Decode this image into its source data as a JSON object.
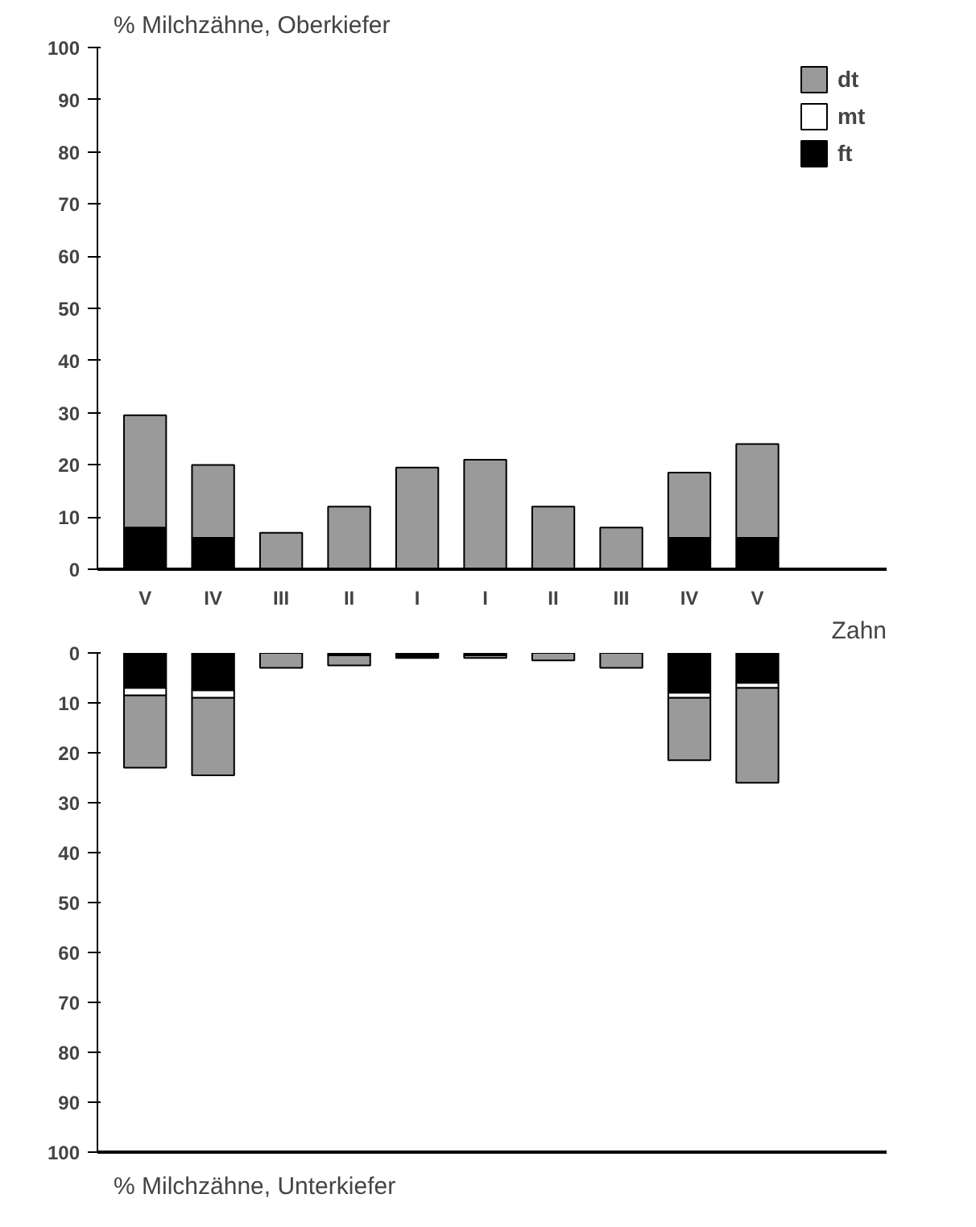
{
  "chart_data": [
    {
      "type": "bar",
      "stacked": true,
      "ylabel": "% Milchzähne, Oberkiefer",
      "xlabel": "Zahn",
      "categories": [
        "V",
        "IV",
        "III",
        "II",
        "I",
        "I",
        "II",
        "III",
        "IV",
        "V"
      ],
      "ylim": [
        0,
        100
      ],
      "yticks": [
        0,
        10,
        20,
        30,
        40,
        50,
        60,
        70,
        80,
        90,
        100
      ],
      "legend": "top right",
      "grid": false,
      "series": [
        {
          "name": "ft",
          "color": "#000000",
          "values": [
            8,
            6,
            0,
            0,
            0,
            0,
            0,
            0,
            6,
            6
          ]
        },
        {
          "name": "mt",
          "color": "#ffffff",
          "values": [
            0,
            0,
            0,
            0,
            0,
            0,
            0,
            0,
            0,
            0
          ]
        },
        {
          "name": "dt",
          "color": "#9a9a9a",
          "values": [
            21.5,
            14,
            7,
            12,
            19.5,
            21,
            12,
            8,
            12.5,
            18
          ]
        }
      ]
    },
    {
      "type": "bar",
      "stacked": true,
      "annotations": [
        "% Milchzähne, Unterkiefer"
      ],
      "categories": [
        null,
        null,
        null,
        null,
        null,
        null,
        null,
        null,
        null,
        null
      ],
      "ylim": [
        100,
        0
      ],
      "yticks": [
        0,
        10,
        20,
        30,
        40,
        50,
        60,
        70,
        80,
        90,
        100
      ],
      "grid": false,
      "series": [
        {
          "color": "#000000",
          "values": [
            7,
            7.5,
            0,
            0.5,
            1,
            0.5,
            0,
            0,
            8,
            6
          ]
        },
        {
          "color": "#ffffff",
          "values": [
            1.5,
            1.5,
            0,
            0,
            0,
            0,
            0,
            0,
            1,
            1
          ]
        },
        {
          "color": "#9a9a9a",
          "values": [
            14.5,
            15.5,
            3,
            2,
            0,
            0.5,
            1.5,
            3,
            12.5,
            19
          ]
        }
      ]
    }
  ]
}
